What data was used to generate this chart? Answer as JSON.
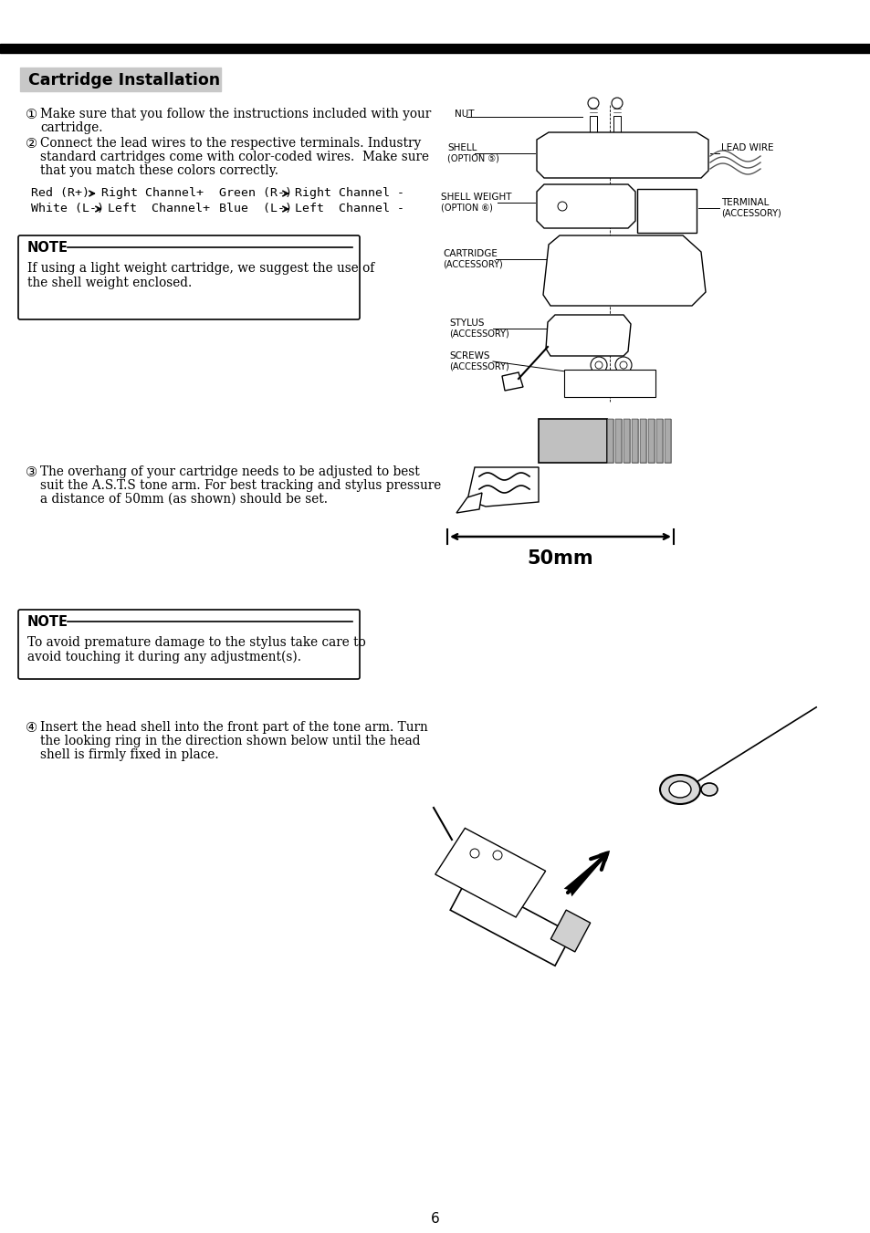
{
  "bg_color": "#ffffff",
  "title": "Cartridge Installation",
  "page_number": "6",
  "note1_l1": "If using a light weight cartridge, we suggest the use of",
  "note1_l2": "the shell weight enclosed.",
  "note2_l1": "To avoid premature damage to the stylus take care to",
  "note2_l2": "avoid touching it during any adjustment(s).",
  "dim_50mm": "50mm"
}
